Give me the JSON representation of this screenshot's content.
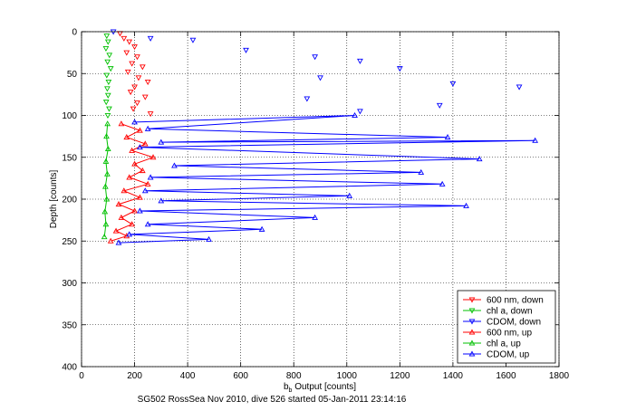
{
  "chart_data": {
    "type": "scatter",
    "title": "",
    "xlabel_main": "b",
    "xlabel_sub": "b",
    "xlabel_rest": " Output [counts]",
    "ylabel": "Depth [counts]",
    "caption": "SG502 RossSea Nov 2010, dive 526 started 05-Jan-2011 23:14:16",
    "xlim": [
      0,
      1800
    ],
    "ylim": [
      0,
      400
    ],
    "y_reversed": true,
    "grid": "dotted",
    "legend_position": "bottom-right",
    "xticks": [
      0,
      200,
      400,
      600,
      800,
      1000,
      1200,
      1400,
      1600,
      1800
    ],
    "yticks": [
      0,
      50,
      100,
      150,
      200,
      250,
      300,
      350,
      400
    ],
    "series": [
      {
        "name": "600 nm, down",
        "color": "#ff0000",
        "marker": "triangle-down",
        "line": false,
        "points": [
          [
            145,
            2
          ],
          [
            160,
            8
          ],
          [
            180,
            12
          ],
          [
            200,
            18
          ],
          [
            170,
            25
          ],
          [
            210,
            30
          ],
          [
            190,
            38
          ],
          [
            230,
            42
          ],
          [
            175,
            48
          ],
          [
            215,
            55
          ],
          [
            250,
            60
          ],
          [
            200,
            66
          ],
          [
            185,
            72
          ],
          [
            240,
            78
          ],
          [
            210,
            85
          ],
          [
            195,
            92
          ],
          [
            260,
            98
          ]
        ]
      },
      {
        "name": "chl a, down",
        "color": "#00c000",
        "marker": "triangle-down",
        "line": false,
        "points": [
          [
            95,
            5
          ],
          [
            100,
            12
          ],
          [
            92,
            20
          ],
          [
            105,
            28
          ],
          [
            98,
            36
          ],
          [
            110,
            44
          ],
          [
            95,
            52
          ],
          [
            102,
            60
          ],
          [
            97,
            68
          ],
          [
            100,
            76
          ],
          [
            93,
            84
          ],
          [
            104,
            92
          ],
          [
            99,
            100
          ]
        ]
      },
      {
        "name": "CDOM, down",
        "color": "#0000ff",
        "marker": "triangle-down",
        "line": false,
        "points": [
          [
            120,
            0
          ],
          [
            260,
            8
          ],
          [
            420,
            10
          ],
          [
            620,
            22
          ],
          [
            880,
            30
          ],
          [
            1050,
            35
          ],
          [
            1200,
            44
          ],
          [
            900,
            55
          ],
          [
            1400,
            62
          ],
          [
            1650,
            66
          ],
          [
            850,
            80
          ],
          [
            1350,
            88
          ],
          [
            1050,
            95
          ]
        ]
      },
      {
        "name": "600 nm, up",
        "color": "#ff0000",
        "marker": "triangle-up",
        "line": true,
        "points": [
          [
            150,
            110
          ],
          [
            220,
            118
          ],
          [
            170,
            126
          ],
          [
            240,
            134
          ],
          [
            190,
            142
          ],
          [
            270,
            150
          ],
          [
            200,
            158
          ],
          [
            230,
            166
          ],
          [
            180,
            174
          ],
          [
            250,
            182
          ],
          [
            160,
            190
          ],
          [
            220,
            198
          ],
          [
            140,
            206
          ],
          [
            200,
            214
          ],
          [
            150,
            222
          ],
          [
            190,
            230
          ],
          [
            130,
            238
          ],
          [
            170,
            244
          ],
          [
            110,
            250
          ]
        ]
      },
      {
        "name": "chl a, up",
        "color": "#00c000",
        "marker": "triangle-up",
        "line": true,
        "points": [
          [
            98,
            110
          ],
          [
            94,
            125
          ],
          [
            100,
            140
          ],
          [
            92,
            155
          ],
          [
            97,
            170
          ],
          [
            90,
            185
          ],
          [
            95,
            200
          ],
          [
            88,
            215
          ],
          [
            92,
            230
          ],
          [
            86,
            245
          ]
        ]
      },
      {
        "name": "CDOM, up",
        "color": "#0000ff",
        "marker": "triangle-up",
        "line": true,
        "points": [
          [
            200,
            108
          ],
          [
            1030,
            100
          ],
          [
            250,
            116
          ],
          [
            1380,
            126
          ],
          [
            300,
            132
          ],
          [
            1710,
            130
          ],
          [
            220,
            138
          ],
          [
            1500,
            152
          ],
          [
            350,
            160
          ],
          [
            1280,
            168
          ],
          [
            260,
            174
          ],
          [
            1360,
            182
          ],
          [
            240,
            190
          ],
          [
            1010,
            196
          ],
          [
            300,
            202
          ],
          [
            1450,
            208
          ],
          [
            220,
            214
          ],
          [
            880,
            222
          ],
          [
            250,
            230
          ],
          [
            680,
            236
          ],
          [
            180,
            242
          ],
          [
            480,
            248
          ],
          [
            140,
            252
          ]
        ]
      }
    ]
  }
}
